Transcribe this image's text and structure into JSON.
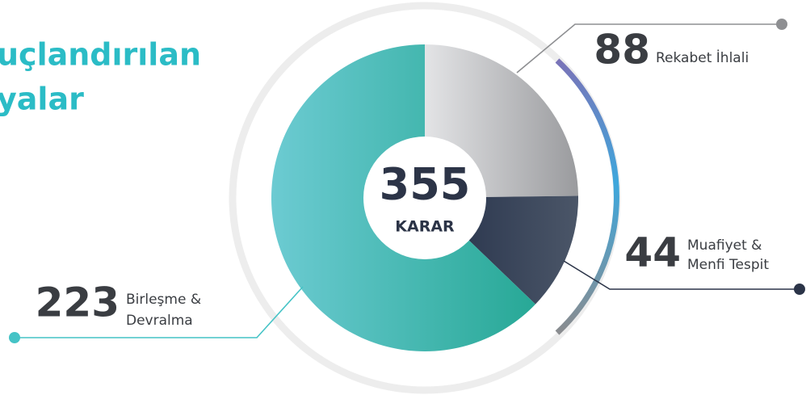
{
  "chart_data": {
    "type": "pie",
    "title_lines": [
      "uçlandırılan",
      "yalar"
    ],
    "total": 355,
    "total_label": "KARAR",
    "categories": [
      [
        "Rekabet İhlali"
      ],
      [
        "Muafiyet &",
        "Menfi Tespit"
      ],
      [
        "Birleşme &",
        "Devralma"
      ]
    ],
    "values": [
      88,
      44,
      223
    ],
    "colors": [
      [
        "#e3e4e6",
        "#9a9b9e"
      ],
      [
        "#243049",
        "#4b5668"
      ],
      [
        "#6ccbd2",
        "#27a896"
      ]
    ]
  }
}
